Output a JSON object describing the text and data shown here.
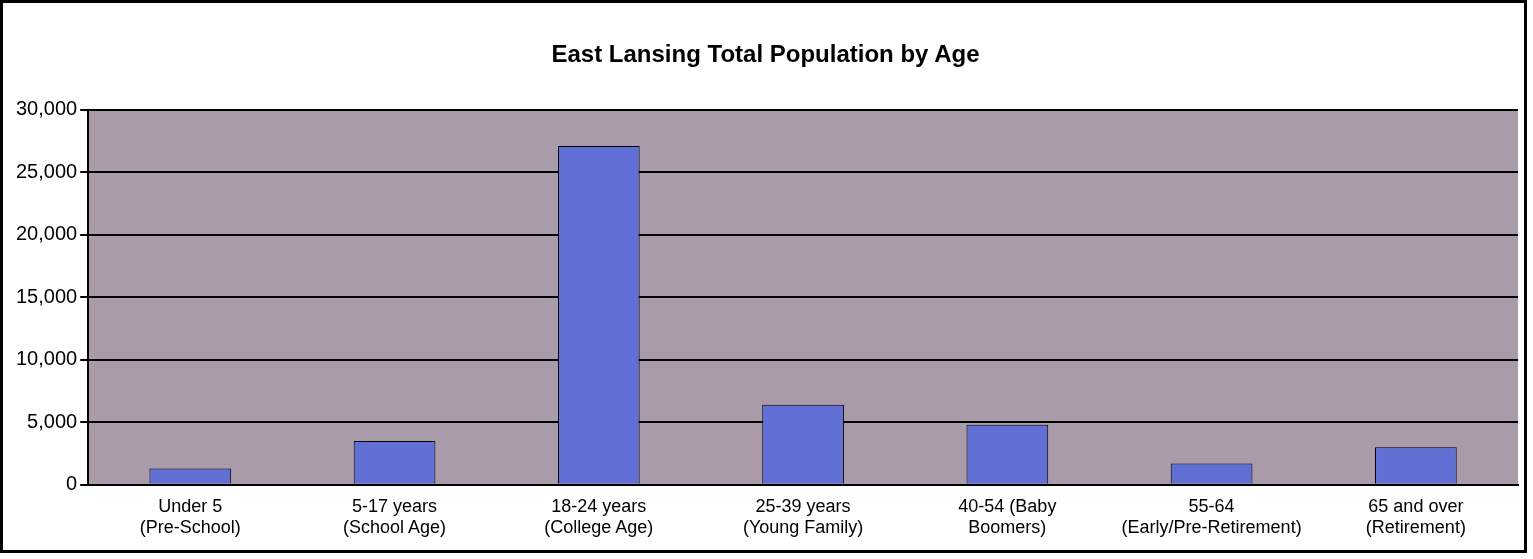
{
  "chart_data": {
    "type": "bar",
    "title": "East Lansing Total Population by Age",
    "categories": [
      "Under 5 (Pre-School)",
      "5-17 years (School Age)",
      "18-24 years (College Age)",
      "25-39 years (Young Family)",
      "40-54 (Baby Boomers)",
      "55-64 (Early/Pre-Retirement)",
      "65 and over (Retirement)"
    ],
    "values": [
      1300,
      3500,
      27100,
      6400,
      4800,
      1700,
      3000
    ],
    "color": "#6270d6",
    "ylim": [
      0,
      30000
    ],
    "yticks": [
      {
        "value": 0,
        "label": "0"
      },
      {
        "value": 5000,
        "label": "5,000"
      },
      {
        "value": 10000,
        "label": "10,000"
      },
      {
        "value": 15000,
        "label": "15,000"
      },
      {
        "value": 20000,
        "label": "20,000"
      },
      {
        "value": 25000,
        "label": "25,000"
      },
      {
        "value": 30000,
        "label": "30,000"
      }
    ],
    "grid": "y",
    "legend": false
  }
}
